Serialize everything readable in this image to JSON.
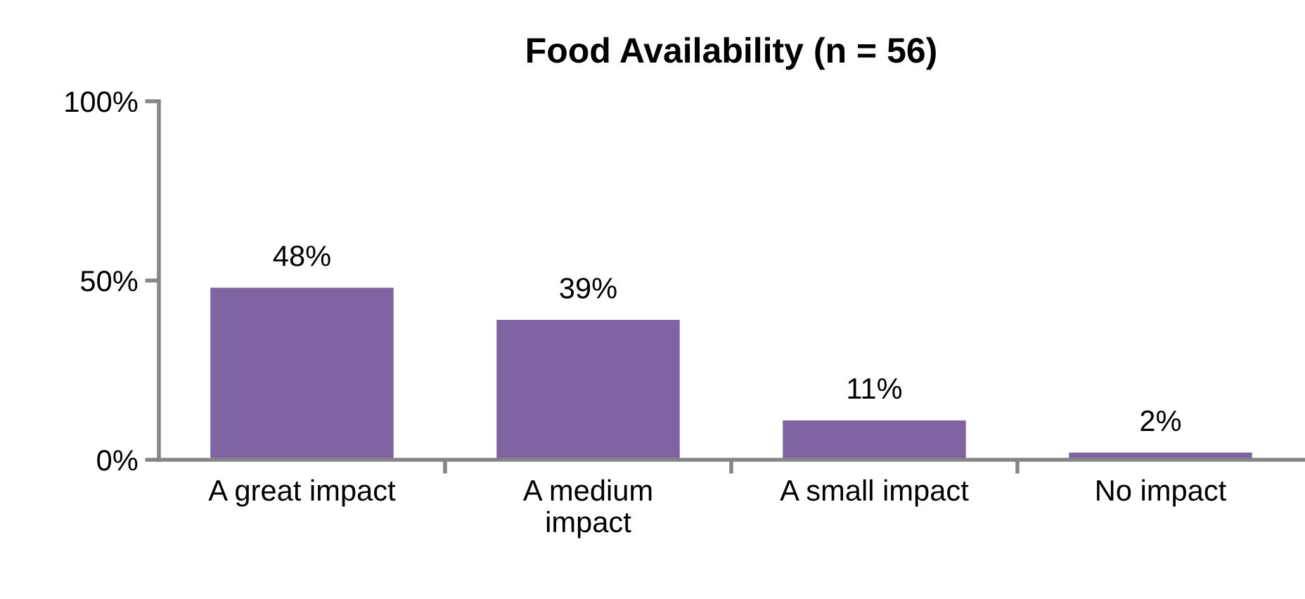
{
  "chart_data": {
    "type": "bar",
    "title": "Food Availability (n = 56)",
    "categories": [
      "A great impact",
      "A medium\nimpact",
      "A small impact",
      "No impact"
    ],
    "values": [
      48,
      39,
      11,
      2
    ],
    "value_labels": [
      "48%",
      "39%",
      "11%",
      "2%"
    ],
    "color": "#8064a2",
    "ylim": [
      0,
      100
    ],
    "yticks": [
      {
        "value": 0,
        "label": "0%"
      },
      {
        "value": 50,
        "label": "50%"
      },
      {
        "value": 100,
        "label": "100%"
      }
    ],
    "grid": false,
    "legend": false
  }
}
